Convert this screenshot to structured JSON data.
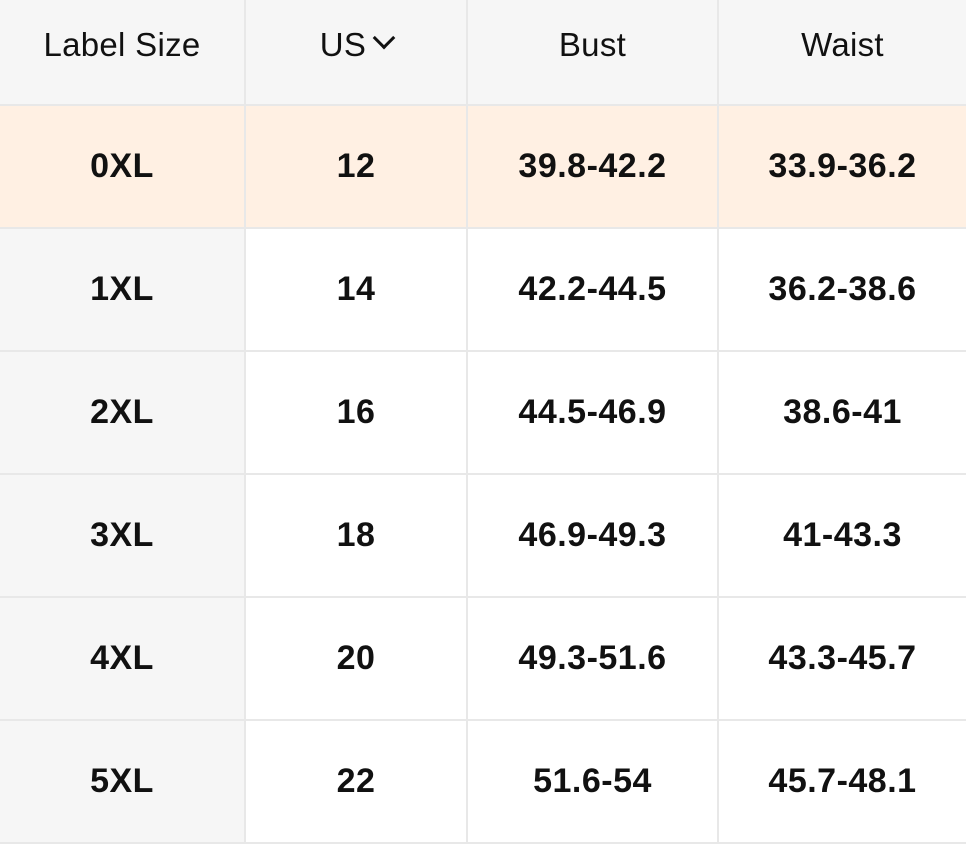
{
  "table": {
    "headers": [
      "Label Size",
      "US",
      "Bust",
      "Waist"
    ],
    "sortable_header_index": 1,
    "highlighted_row_index": 0,
    "rows": [
      [
        "0XL",
        "12",
        "39.8-42.2",
        "33.9-36.2"
      ],
      [
        "1XL",
        "14",
        "42.2-44.5",
        "36.2-38.6"
      ],
      [
        "2XL",
        "16",
        "44.5-46.9",
        "38.6-41"
      ],
      [
        "3XL",
        "18",
        "46.9-49.3",
        "41-43.3"
      ],
      [
        "4XL",
        "20",
        "49.3-51.6",
        "43.3-45.7"
      ],
      [
        "5XL",
        "22",
        "51.6-54",
        "45.7-48.1"
      ]
    ]
  },
  "colors": {
    "header_bg": "#f6f6f6",
    "highlight_bg": "#fff0e3",
    "border": "#e8e8e8"
  },
  "icons": {
    "us_header": "chevron-down-icon"
  }
}
